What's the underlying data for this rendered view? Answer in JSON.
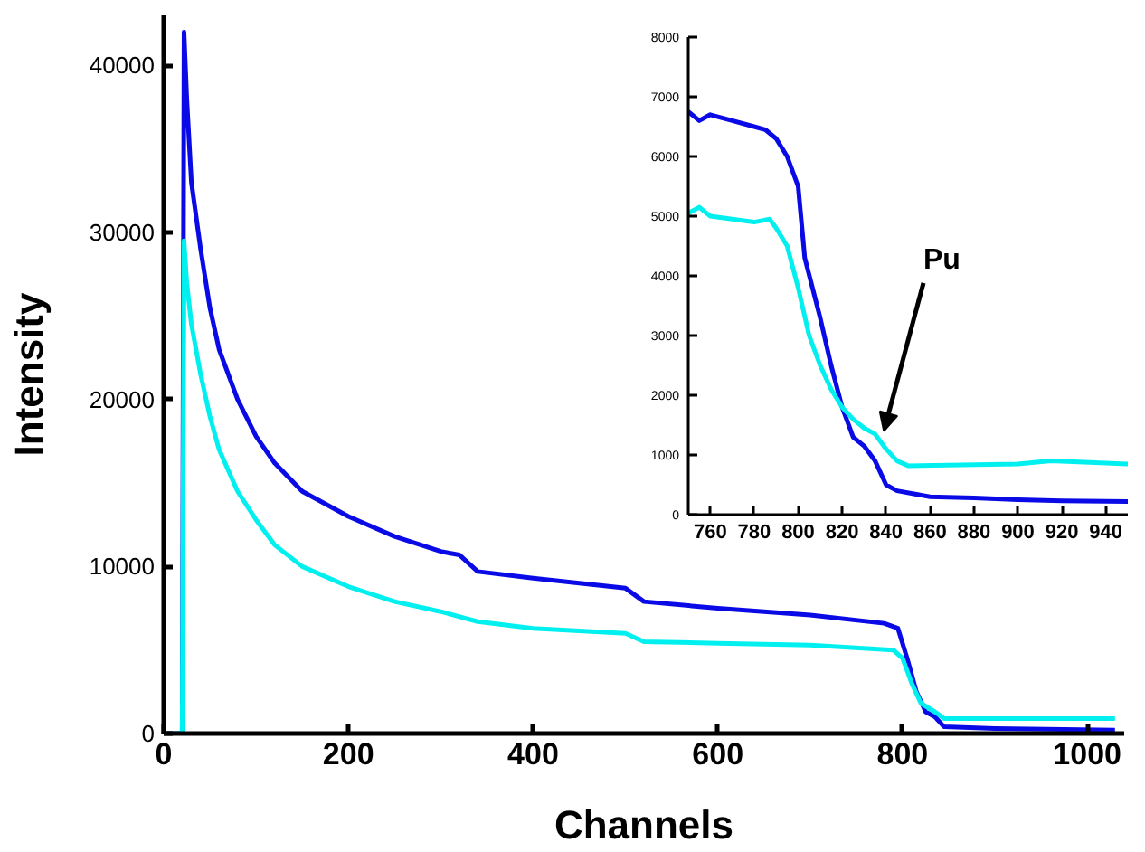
{
  "chart_data": [
    {
      "type": "line",
      "xlabel": "Channels",
      "ylabel": "Intensity",
      "xlim": [
        0,
        1040
      ],
      "ylim": [
        0,
        43000
      ],
      "xticks": [
        0,
        200,
        400,
        600,
        800,
        1000
      ],
      "yticks": [
        0,
        10000,
        20000,
        30000,
        40000
      ],
      "grid": false,
      "line_style": "solid",
      "series": [
        {
          "color": "#0a0ae6",
          "x": [
            0,
            20,
            22,
            25,
            30,
            40,
            50,
            60,
            80,
            100,
            120,
            150,
            200,
            250,
            300,
            320,
            340,
            400,
            450,
            500,
            520,
            600,
            700,
            780,
            795,
            805,
            815,
            825,
            835,
            845,
            900,
            1030
          ],
          "values": [
            0,
            0,
            42000,
            38000,
            33000,
            29000,
            25500,
            23000,
            20000,
            17800,
            16200,
            14500,
            13000,
            11800,
            10900,
            10700,
            9700,
            9300,
            9000,
            8700,
            7900,
            7500,
            7100,
            6600,
            6300,
            4500,
            2500,
            1300,
            1000,
            400,
            300,
            200
          ]
        },
        {
          "color": "#00f0f0",
          "x": [
            0,
            20,
            22,
            25,
            30,
            40,
            50,
            60,
            80,
            100,
            120,
            150,
            200,
            250,
            300,
            340,
            400,
            500,
            520,
            600,
            700,
            790,
            800,
            810,
            820,
            835,
            845,
            900,
            1030
          ],
          "values": [
            0,
            0,
            29500,
            27000,
            24500,
            21500,
            19000,
            17000,
            14500,
            12800,
            11300,
            10000,
            8800,
            7900,
            7300,
            6700,
            6300,
            6000,
            5500,
            5400,
            5300,
            5000,
            4500,
            3000,
            1800,
            1300,
            900,
            900,
            900
          ]
        }
      ]
    },
    {
      "type": "line",
      "xlim": [
        750,
        950
      ],
      "ylim": [
        0,
        8000
      ],
      "xticks": [
        760,
        780,
        800,
        820,
        840,
        860,
        880,
        900,
        920,
        940
      ],
      "yticks": [
        0,
        1000,
        2000,
        3000,
        4000,
        5000,
        6000,
        7000,
        8000
      ],
      "grid": false,
      "line_style": "solid",
      "annotations": [
        {
          "text": "Pu",
          "x": 839,
          "y": 1400
        }
      ],
      "series": [
        {
          "color": "#0a0ae6",
          "x": [
            750,
            755,
            760,
            770,
            780,
            785,
            790,
            795,
            800,
            803,
            810,
            815,
            820,
            825,
            830,
            835,
            840,
            845,
            860,
            880,
            900,
            920,
            950
          ],
          "values": [
            6750,
            6600,
            6700,
            6600,
            6500,
            6450,
            6300,
            6000,
            5500,
            4300,
            3300,
            2500,
            1800,
            1300,
            1150,
            900,
            500,
            400,
            300,
            280,
            250,
            230,
            220
          ]
        },
        {
          "color": "#00f0f0",
          "x": [
            750,
            755,
            760,
            770,
            780,
            787,
            790,
            795,
            800,
            805,
            810,
            815,
            820,
            825,
            830,
            835,
            840,
            845,
            850,
            900,
            915,
            950
          ],
          "values": [
            5050,
            5150,
            5000,
            4950,
            4900,
            4950,
            4800,
            4500,
            3800,
            3000,
            2500,
            2100,
            1800,
            1600,
            1450,
            1350,
            1100,
            900,
            820,
            850,
            900,
            850
          ]
        }
      ]
    }
  ]
}
